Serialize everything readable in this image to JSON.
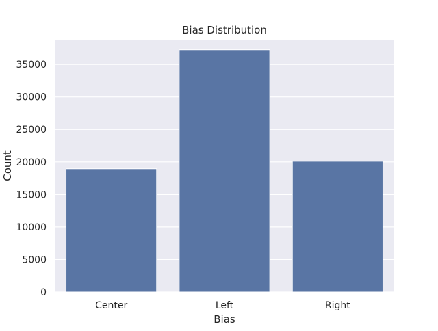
{
  "chart_data": {
    "type": "bar",
    "title": "Bias Distribution",
    "xlabel": "Bias",
    "ylabel": "Count",
    "categories": [
      "Center",
      "Left",
      "Right"
    ],
    "values": [
      18950,
      37250,
      20100
    ],
    "ylim": [
      0,
      38800
    ],
    "yticks": [
      0,
      5000,
      10000,
      15000,
      20000,
      25000,
      30000,
      35000
    ],
    "grid": true,
    "legend": "none"
  },
  "colors": {
    "bar": "#5975a4",
    "plot_background": "#eaeaf2",
    "grid": "#ffffff",
    "text": "#262626"
  }
}
